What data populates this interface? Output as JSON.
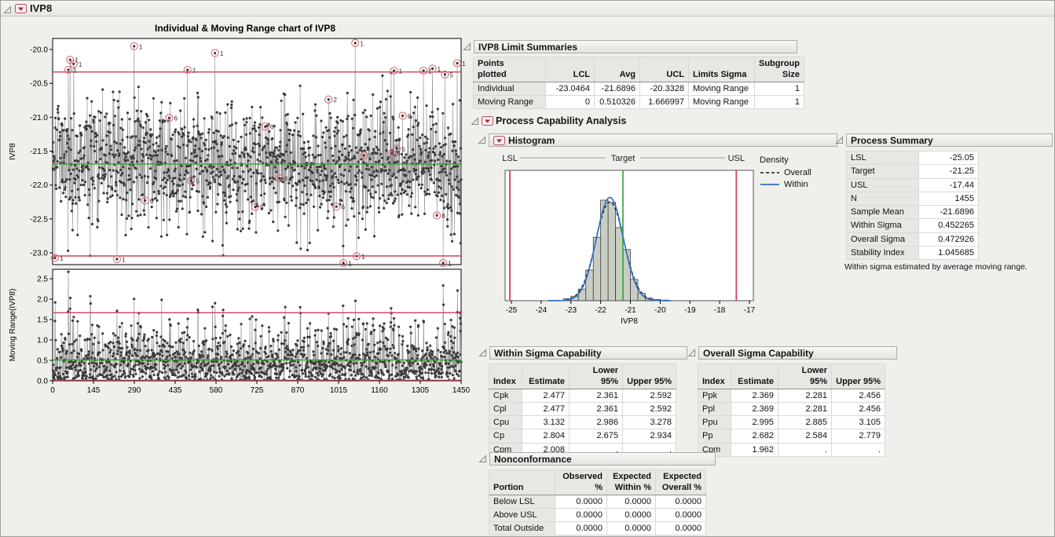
{
  "window": {
    "title": "IVP8"
  },
  "colors": {
    "limit_red": "#ce4257",
    "center_green": "#33a02c",
    "point_fill": "#3a3a3a",
    "connector_gray": "#8f8f8f",
    "bar_fill": "#c9cdc3",
    "within_blue": "#3272c6",
    "flag_red": "#d96a78"
  },
  "control_chart": {
    "title": "Individual & Moving Range chart of IVP8",
    "individual": {
      "y_axis_label": "IVP8",
      "y_tick_labels": [
        "-20.0",
        "-20.5",
        "-21.0",
        "-21.5",
        "-22.0",
        "-22.5",
        "-23.0"
      ],
      "lcl": -23.0464,
      "avg": -21.6896,
      "ucl": -20.3328
    },
    "moving_range": {
      "y_axis_label": "Moving Range(IVP8)",
      "y_tick_labels": [
        "0.0",
        "0.5",
        "1.0",
        "1.5",
        "2.0",
        "2.5"
      ],
      "lcl": 0,
      "avg": 0.510326,
      "ucl": 1.666997
    },
    "x_tick_labels": [
      "0",
      "145",
      "290",
      "435",
      "580",
      "725",
      "870",
      "1015",
      "1160",
      "1305",
      "1450"
    ],
    "n_points": 1455,
    "sigma_within": 0.452265
  },
  "limit_summaries": {
    "title": "IVP8 Limit Summaries",
    "headers": [
      "Points\nplotted",
      "LCL",
      "Avg",
      "UCL",
      "Limits Sigma",
      "Subgroup\nSize"
    ],
    "rows": [
      [
        "Individual",
        "-23.0464",
        "-21.6896",
        "-20.3328",
        "Moving Range",
        "1"
      ],
      [
        "Moving Range",
        "0",
        "0.510326",
        "1.666997",
        "Moving Range",
        "1"
      ]
    ]
  },
  "process_capability": {
    "title": "Process Capability Analysis"
  },
  "histogram": {
    "title": "Histogram",
    "spec_labels": {
      "lsl": "LSL",
      "target": "Target",
      "usl": "USL"
    },
    "lsl": -25.05,
    "target": -21.25,
    "usl": -17.44,
    "x_tick_labels": [
      "-25",
      "-24",
      "-23",
      "-22",
      "-21",
      "-20",
      "-19",
      "-18",
      "-17"
    ],
    "x_axis_label": "IVP8",
    "legend": {
      "title": "Density",
      "overall": "Overall",
      "within": "Within"
    },
    "mean": -21.6896,
    "within_sigma": 0.452265,
    "overall_sigma": 0.472926,
    "bin_width": 0.25
  },
  "process_summary": {
    "title": "Process Summary",
    "rows": [
      [
        "LSL",
        "-25.05"
      ],
      [
        "Target",
        "-21.25"
      ],
      [
        "USL",
        "-17.44"
      ],
      [
        "N",
        "1455"
      ],
      [
        "Sample Mean",
        "-21.6896"
      ],
      [
        "Within Sigma",
        "0.452265"
      ],
      [
        "Overall Sigma",
        "0.472926"
      ],
      [
        "Stability Index",
        "1.045685"
      ]
    ],
    "note": "Within sigma estimated by average moving range."
  },
  "within_capability": {
    "title": "Within Sigma Capability",
    "headers": [
      "Index",
      "Estimate",
      "Lower 95%",
      "Upper 95%"
    ],
    "rows": [
      [
        "Cpk",
        "2.477",
        "2.361",
        "2.592"
      ],
      [
        "Cpl",
        "2.477",
        "2.361",
        "2.592"
      ],
      [
        "Cpu",
        "3.132",
        "2.986",
        "3.278"
      ],
      [
        "Cp",
        "2.804",
        "2.675",
        "2.934"
      ],
      [
        "Cpm",
        "2.008",
        ".",
        "."
      ]
    ]
  },
  "overall_capability": {
    "title": "Overall Sigma Capability",
    "headers": [
      "Index",
      "Estimate",
      "Lower 95%",
      "Upper 95%"
    ],
    "rows": [
      [
        "Ppk",
        "2.369",
        "2.281",
        "2.456"
      ],
      [
        "Ppl",
        "2.369",
        "2.281",
        "2.456"
      ],
      [
        "Ppu",
        "2.995",
        "2.885",
        "3.105"
      ],
      [
        "Pp",
        "2.682",
        "2.584",
        "2.779"
      ],
      [
        "Cpm",
        "1.962",
        ".",
        "."
      ]
    ]
  },
  "nonconformance": {
    "title": "Nonconformance",
    "headers": [
      "Portion",
      "Observed %",
      "Expected\nWithin %",
      "Expected\nOverall %"
    ],
    "rows": [
      [
        "Below LSL",
        "0.0000",
        "0.0000",
        "0.0000"
      ],
      [
        "Above USL",
        "0.0000",
        "0.0000",
        "0.0000"
      ],
      [
        "Total Outside",
        "0.0000",
        "0.0000",
        "0.0000"
      ]
    ]
  },
  "chart_data": [
    {
      "type": "line",
      "subtype": "individuals-control-chart",
      "title": "Individual & Moving Range chart of IVP8",
      "ylabel": "IVP8",
      "xlabel": "",
      "x_ticks": [
        0,
        145,
        290,
        435,
        580,
        725,
        870,
        1015,
        1160,
        1305,
        1450
      ],
      "y_ticks": [
        -20.0,
        -20.5,
        -21.0,
        -21.5,
        -22.0,
        -22.5,
        -23.0
      ],
      "ylim": [
        -23.2,
        -19.85
      ],
      "n_points": 1455,
      "center_line": -21.6896,
      "ucl": -20.3328,
      "lcl": -23.0464,
      "distribution": {
        "mean": -21.6896,
        "sigma": 0.452265
      },
      "flagged_tests": [
        1,
        2,
        5,
        6,
        8
      ],
      "note": "1455 individual values, approximately normal; points outside control limits are circled and labeled 1; other circled points labeled with failed runs-test numbers 2, 5, 6, 8",
      "grid": false
    },
    {
      "type": "line",
      "subtype": "moving-range-control-chart",
      "ylabel": "Moving Range(IVP8)",
      "xlabel": "",
      "x_ticks": [
        0,
        145,
        290,
        435,
        580,
        725,
        870,
        1015,
        1160,
        1305,
        1450
      ],
      "y_ticks": [
        0.0,
        0.5,
        1.0,
        1.5,
        2.0,
        2.5
      ],
      "ylim": [
        0,
        2.7
      ],
      "center_line": 0.510326,
      "ucl": 1.666997,
      "lcl": 0,
      "grid": false
    },
    {
      "type": "bar",
      "subtype": "capability-histogram",
      "xlabel": "IVP8",
      "xlim": [
        -25.3,
        -16.8
      ],
      "x_ticks": [
        -25,
        -24,
        -23,
        -22,
        -21,
        -20,
        -19,
        -18,
        -17
      ],
      "bin_width": 0.25,
      "n": 1455,
      "mean": -21.6896,
      "within_sigma": 0.452265,
      "overall_sigma": 0.472926,
      "lsl": -25.05,
      "target": -21.25,
      "usl": -17.44,
      "series": [
        {
          "name": "Overall",
          "style": "dashed-black-density-curve"
        },
        {
          "name": "Within",
          "style": "solid-blue-density-curve"
        }
      ],
      "legend_position": "right",
      "grid": false
    }
  ]
}
